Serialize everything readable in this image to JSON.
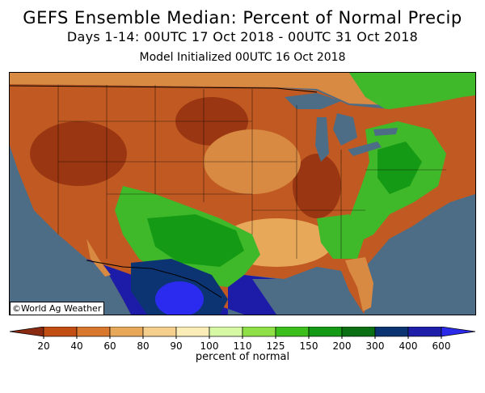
{
  "title": {
    "line1": "GEFS Ensemble Median: Percent of Normal Precip",
    "line2": "Days 1-14: 00UTC 17 Oct 2018 - 00UTC 31 Oct 2018",
    "line3": "Model Initialized 00UTC 16 Oct 2018"
  },
  "credit": "©World Ag Weather",
  "colorbar": {
    "label": "percent of normal",
    "ticks": [
      "20",
      "40",
      "60",
      "80",
      "90",
      "100",
      "110",
      "125",
      "150",
      "200",
      "300",
      "400",
      "600"
    ],
    "colors": [
      "#8a2a10",
      "#c24e14",
      "#d8782e",
      "#e8a85a",
      "#f5cf8e",
      "#fbedb8",
      "#d6f7a3",
      "#8ee046",
      "#3cbf1c",
      "#149a14",
      "#0b6f14",
      "#0c3472",
      "#1e1ea8",
      "#2a2ae8"
    ]
  },
  "colors": {
    "ocean": "#4d6c86",
    "lakes": "#4d6c86",
    "dry_dark": "#9a3712",
    "dry": "#c15a22",
    "dry_light": "#d88a42",
    "near_normal": "#f0c27c",
    "wet": "#3fb82a",
    "wet_dark": "#149a14",
    "very_wet": "#1c1ca8",
    "extreme": "#2b2bf0"
  }
}
